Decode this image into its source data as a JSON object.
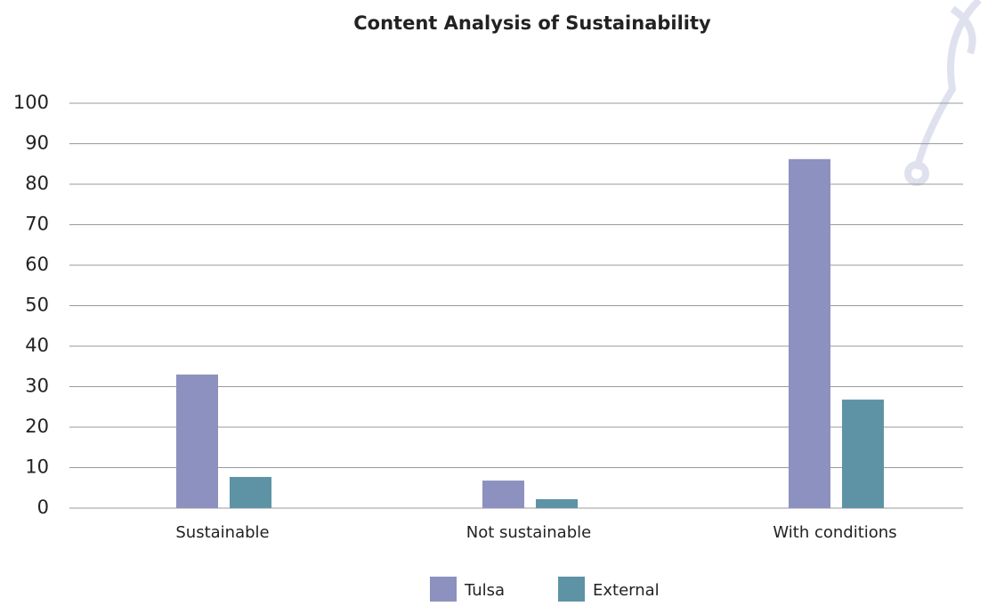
{
  "chart_data": {
    "type": "bar",
    "title": "Content Analysis of Sustainability",
    "categories": [
      "Sustainable",
      "Not sustainable",
      "With conditions"
    ],
    "series": [
      {
        "name": "Tulsa",
        "color": "#8c91bf",
        "values": [
          33,
          6.8,
          86.2
        ]
      },
      {
        "name": "External",
        "color": "#5e93a5",
        "values": [
          7.7,
          2.2,
          26.8
        ]
      }
    ],
    "ylim": [
      0,
      100
    ],
    "yticks": [
      0,
      10,
      20,
      30,
      40,
      50,
      60,
      70,
      80,
      90,
      100
    ],
    "grid": true,
    "legend": "bottom"
  }
}
